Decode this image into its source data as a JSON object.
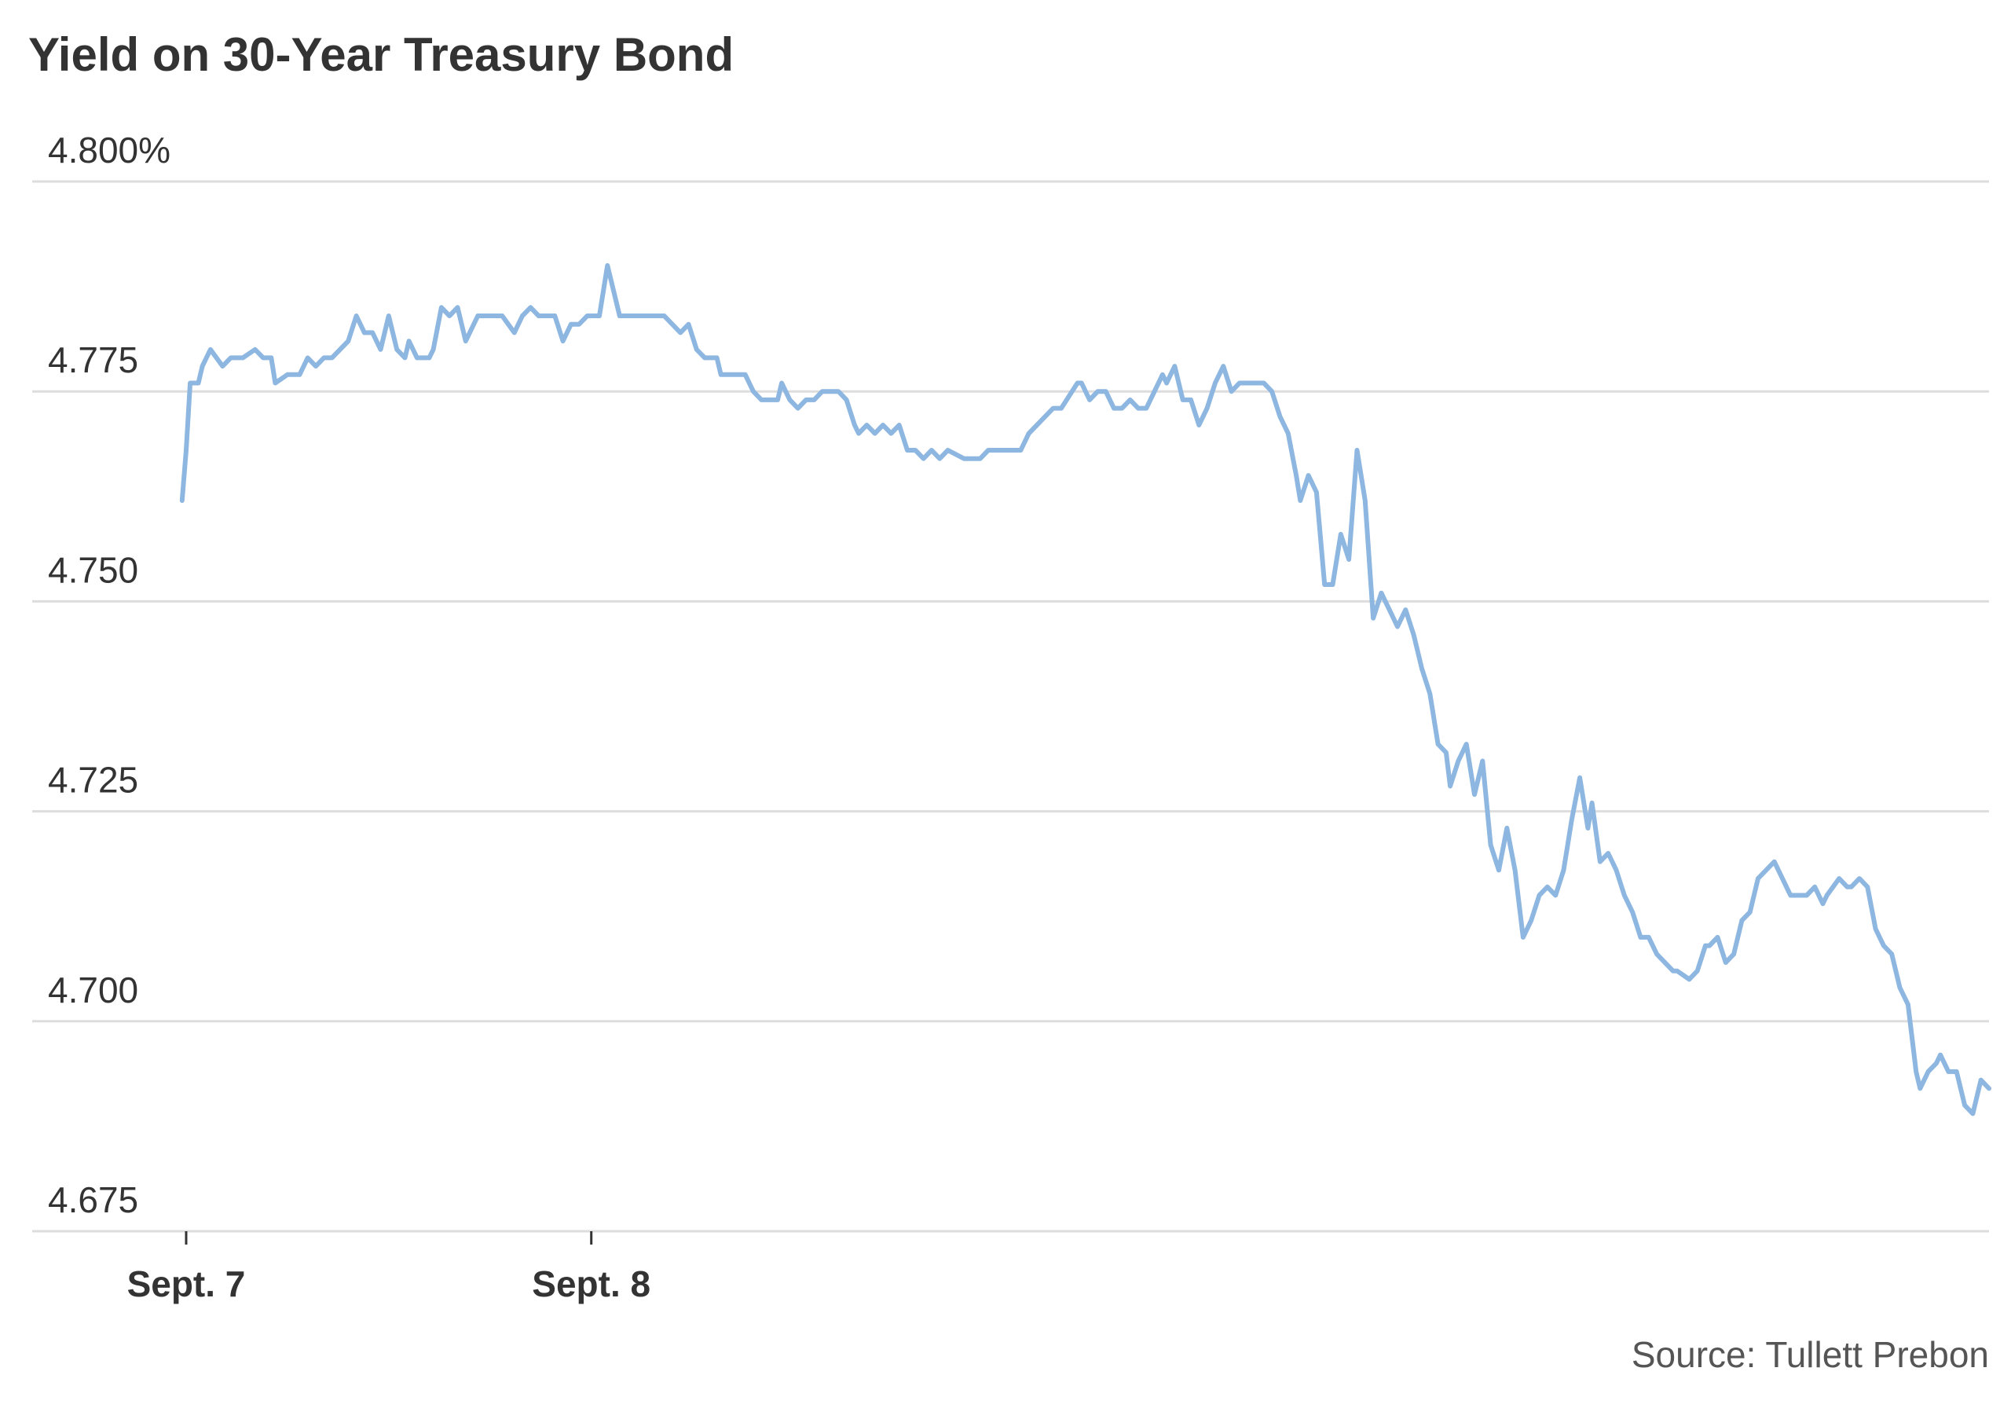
{
  "chart_data": {
    "type": "line",
    "title": "Yield on 30-Year Treasury Bond",
    "source": "Source: Tullett Prebon",
    "color": "#8db6e0",
    "grid": true,
    "xlim": [
      -0.38,
      4.45
    ],
    "xticks": [
      {
        "value": 0,
        "label": "Sept. 7"
      },
      {
        "value": 1,
        "label": "Sept. 8"
      }
    ],
    "ylim": [
      4.675,
      4.8
    ],
    "yticks": [
      4.675,
      {
        "value": 4.7,
        "label": "4.700"
      },
      4.725,
      {
        "value": 4.75,
        "label": "4.750"
      },
      4.775,
      {
        "value": 4.8,
        "label": "4.800%"
      }
    ],
    "x": [
      -0.01,
      0,
      0.01,
      0.03,
      0.04,
      0.06,
      0.09,
      0.11,
      0.14,
      0.17,
      0.19,
      0.21,
      0.22,
      0.25,
      0.28,
      0.3,
      0.32,
      0.34,
      0.36,
      0.4,
      0.42,
      0.44,
      0.46,
      0.48,
      0.5,
      0.52,
      0.54,
      0.55,
      0.57,
      0.6,
      0.61,
      0.63,
      0.65,
      0.67,
      0.69,
      0.72,
      0.78,
      0.81,
      0.83,
      0.85,
      0.87,
      0.91,
      0.93,
      0.95,
      0.97,
      0.99,
      1.02,
      1.04,
      1.07,
      1.18,
      1.22,
      1.24,
      1.26,
      1.28,
      1.31,
      1.32,
      1.38,
      1.4,
      1.42,
      1.46,
      1.47,
      1.49,
      1.51,
      1.53,
      1.55,
      1.57,
      1.61,
      1.63,
      1.65,
      1.66,
      1.68,
      1.7,
      1.72,
      1.74,
      1.76,
      1.78,
      1.8,
      1.82,
      1.84,
      1.86,
      1.88,
      1.92,
      1.96,
      1.98,
      2.06,
      2.08,
      2.1,
      2.14,
      2.16,
      2.2,
      2.21,
      2.23,
      2.25,
      2.27,
      2.29,
      2.31,
      2.33,
      2.35,
      2.37,
      2.39,
      2.41,
      2.42,
      2.44,
      2.46,
      2.48,
      2.5,
      2.52,
      2.54,
      2.56,
      2.58,
      2.6,
      2.66,
      2.68,
      2.7,
      2.72,
      2.74,
      2.75,
      2.77,
      2.79,
      2.81,
      2.83,
      2.85,
      2.87,
      2.89,
      2.91,
      2.93,
      2.95,
      2.97,
      2.99,
      3.01,
      3.03,
      3.05,
      3.07,
      3.09,
      3.11,
      3.12,
      3.14,
      3.16,
      3.18,
      3.2,
      3.22,
      3.24,
      3.26,
      3.28,
      3.3,
      3.32,
      3.34,
      3.36,
      3.38,
      3.4,
      3.42,
      3.44,
      3.46,
      3.47,
      3.49,
      3.51,
      3.53,
      3.55,
      3.57,
      3.59,
      3.61,
      3.63,
      3.65,
      3.67,
      3.68,
      3.71,
      3.73,
      3.75,
      3.76,
      3.78,
      3.8,
      3.82,
      3.84,
      3.86,
      3.88,
      3.9,
      3.92,
      3.94,
      3.96,
      4.0,
      4.02,
      4.04,
      4.05,
      4.08,
      4.1,
      4.11,
      4.13,
      4.15,
      4.17,
      4.19,
      4.21,
      4.23,
      4.25,
      4.27,
      4.28,
      4.3,
      4.32,
      4.33,
      4.35,
      4.37,
      4.39,
      4.41,
      4.43,
      4.45
    ],
    "values": [
      4.762,
      4.768,
      4.776,
      4.776,
      4.778,
      4.78,
      4.778,
      4.779,
      4.779,
      4.78,
      4.779,
      4.779,
      4.776,
      4.777,
      4.777,
      4.779,
      4.778,
      4.779,
      4.779,
      4.781,
      4.784,
      4.782,
      4.782,
      4.78,
      4.784,
      4.78,
      4.779,
      4.781,
      4.779,
      4.779,
      4.78,
      4.785,
      4.784,
      4.785,
      4.781,
      4.784,
      4.784,
      4.782,
      4.784,
      4.785,
      4.784,
      4.784,
      4.781,
      4.783,
      4.783,
      4.784,
      4.784,
      4.79,
      4.784,
      4.784,
      4.782,
      4.783,
      4.78,
      4.779,
      4.779,
      4.777,
      4.777,
      4.775,
      4.774,
      4.774,
      4.776,
      4.774,
      4.773,
      4.774,
      4.774,
      4.775,
      4.775,
      4.774,
      4.771,
      4.77,
      4.771,
      4.77,
      4.771,
      4.77,
      4.771,
      4.768,
      4.768,
      4.767,
      4.768,
      4.767,
      4.768,
      4.767,
      4.767,
      4.768,
      4.768,
      4.77,
      4.771,
      4.773,
      4.773,
      4.776,
      4.776,
      4.774,
      4.775,
      4.775,
      4.773,
      4.773,
      4.774,
      4.773,
      4.773,
      4.775,
      4.777,
      4.776,
      4.778,
      4.774,
      4.774,
      4.771,
      4.773,
      4.776,
      4.778,
      4.775,
      4.776,
      4.776,
      4.775,
      4.772,
      4.77,
      4.765,
      4.762,
      4.765,
      4.763,
      4.752,
      4.752,
      4.758,
      4.755,
      4.768,
      4.762,
      4.748,
      4.751,
      4.749,
      4.747,
      4.749,
      4.746,
      4.742,
      4.739,
      4.733,
      4.732,
      4.728,
      4.731,
      4.733,
      4.727,
      4.731,
      4.721,
      4.718,
      4.723,
      4.718,
      4.71,
      4.712,
      4.715,
      4.716,
      4.715,
      4.718,
      4.724,
      4.729,
      4.723,
      4.726,
      4.719,
      4.72,
      4.718,
      4.715,
      4.713,
      4.71,
      4.71,
      4.708,
      4.707,
      4.706,
      4.706,
      4.705,
      4.706,
      4.709,
      4.709,
      4.71,
      4.707,
      4.708,
      4.712,
      4.713,
      4.717,
      4.718,
      4.719,
      4.717,
      4.715,
      4.715,
      4.716,
      4.714,
      4.715,
      4.717,
      4.716,
      4.716,
      4.717,
      4.716,
      4.711,
      4.709,
      4.708,
      4.704,
      4.702,
      4.694,
      4.692,
      4.694,
      4.695,
      4.696,
      4.694,
      4.694,
      4.69,
      4.689,
      4.693,
      4.692
    ]
  }
}
